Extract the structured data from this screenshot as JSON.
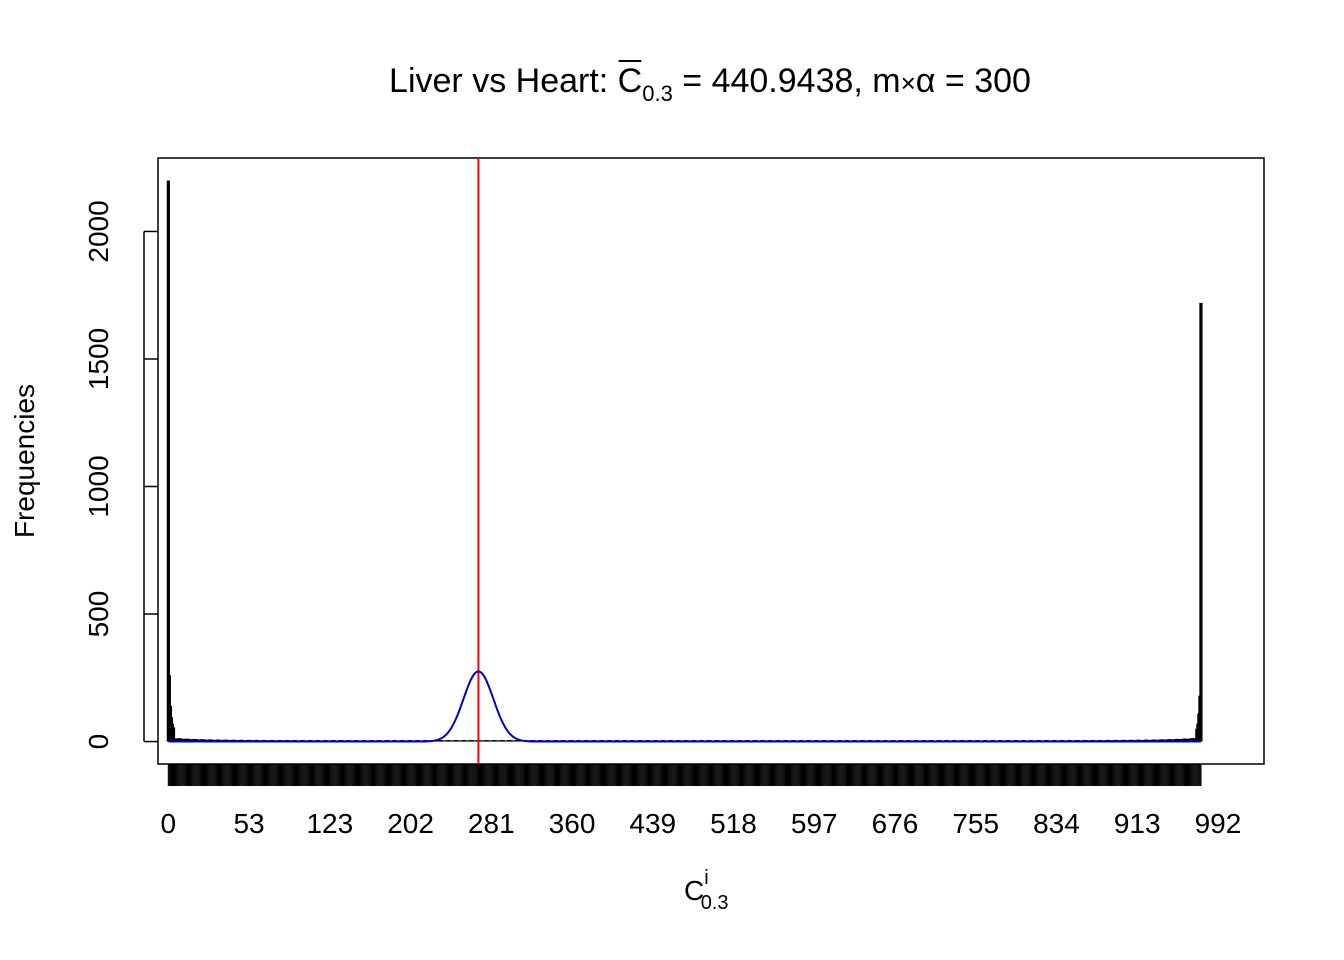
{
  "chart_data": {
    "type": "bar",
    "title": {
      "prefix": "Liver vs Heart: ",
      "symbol": "C",
      "symbol_sub": "0.3",
      "mid": " = 440.9438, m",
      "times": "×",
      "alpha": "α",
      "suffix": " = 300"
    },
    "xlabel": {
      "base": "C",
      "sup": "i",
      "sub": "0.3"
    },
    "ylabel": "Frequencies",
    "x_tick_labels": [
      "0",
      "53",
      "123",
      "202",
      "281",
      "360",
      "439",
      "518",
      "597",
      "676",
      "755",
      "834",
      "913",
      "992"
    ],
    "y_ticks": [
      0,
      500,
      1000,
      1500,
      2000
    ],
    "xlim": [
      -10,
      1060
    ],
    "ylim": [
      -88,
      2288
    ],
    "x_range": [
      0,
      999
    ],
    "spikes": [
      {
        "x": 0,
        "y": 2200
      },
      {
        "x": 1,
        "y": 260
      },
      {
        "x": 2,
        "y": 140
      },
      {
        "x": 3,
        "y": 95
      },
      {
        "x": 4,
        "y": 70
      },
      {
        "x": 5,
        "y": 55
      },
      {
        "x": 995,
        "y": 50
      },
      {
        "x": 996,
        "y": 70
      },
      {
        "x": 997,
        "y": 110
      },
      {
        "x": 998,
        "y": 180
      },
      {
        "x": 999,
        "y": 1720
      }
    ],
    "vline_x": 300,
    "normal_curve": {
      "mean": 300,
      "sd": 14.5,
      "peak": 275
    },
    "colors": {
      "bars": "#000000",
      "vline": "#ff0000",
      "curve": "#0000cc"
    }
  }
}
